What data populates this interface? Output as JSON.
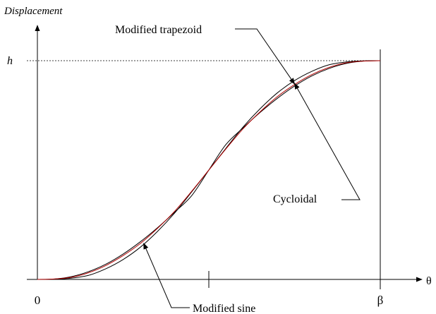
{
  "chart_data": {
    "type": "line",
    "ylabel": "Displacement",
    "xlabel": "θ",
    "x_ticks": [
      {
        "value": 0,
        "label": "0"
      },
      {
        "value": 0.5,
        "label": ""
      },
      {
        "value": 1,
        "label": "β"
      }
    ],
    "y_ticks": [
      {
        "value": 1,
        "label": "h"
      }
    ],
    "xlim": [
      0,
      1
    ],
    "ylim": [
      0,
      1
    ],
    "reference_line": {
      "y": 1,
      "label": "h",
      "style": "dashed"
    },
    "series": [
      {
        "name": "Modified trapezoid",
        "color": "#000000",
        "x": [
          0,
          0.05,
          0.1,
          0.15,
          0.2,
          0.25,
          0.3,
          0.35,
          0.4,
          0.45,
          0.5,
          0.55,
          0.6,
          0.65,
          0.7,
          0.75,
          0.8,
          0.85,
          0.9,
          0.95,
          1
        ],
        "y": [
          0,
          0.002,
          0.013,
          0.036,
          0.07,
          0.116,
          0.172,
          0.236,
          0.307,
          0.383,
          0.5,
          0.617,
          0.693,
          0.764,
          0.828,
          0.884,
          0.93,
          0.964,
          0.987,
          0.998,
          1
        ]
      },
      {
        "name": "Cycloidal",
        "color": "#000000",
        "x": [
          0,
          0.05,
          0.1,
          0.15,
          0.2,
          0.25,
          0.3,
          0.35,
          0.4,
          0.45,
          0.5,
          0.55,
          0.6,
          0.65,
          0.7,
          0.75,
          0.8,
          0.85,
          0.9,
          0.95,
          1
        ],
        "y": [
          0,
          0.001,
          0.006,
          0.019,
          0.049,
          0.091,
          0.147,
          0.219,
          0.303,
          0.4,
          0.5,
          0.6,
          0.697,
          0.781,
          0.853,
          0.909,
          0.951,
          0.981,
          0.994,
          0.999,
          1
        ]
      },
      {
        "name": "Modified sine",
        "color": "#b00000",
        "x": [
          0,
          0.05,
          0.1,
          0.15,
          0.2,
          0.25,
          0.3,
          0.35,
          0.4,
          0.45,
          0.5,
          0.55,
          0.6,
          0.65,
          0.7,
          0.75,
          0.8,
          0.85,
          0.9,
          0.95,
          1
        ],
        "y": [
          0,
          0.002,
          0.01,
          0.031,
          0.064,
          0.109,
          0.164,
          0.233,
          0.311,
          0.403,
          0.5,
          0.597,
          0.689,
          0.767,
          0.836,
          0.891,
          0.936,
          0.969,
          0.99,
          0.998,
          1
        ]
      }
    ],
    "annotations": [
      {
        "text": "Modified trapezoid",
        "series": "Modified trapezoid",
        "point_x": 0.75
      },
      {
        "text": "Cycloidal",
        "series": "Cycloidal",
        "point_x": 0.75
      },
      {
        "text": "Modified sine",
        "series": "Modified sine",
        "point_x": 0.31
      }
    ],
    "grid": false
  }
}
